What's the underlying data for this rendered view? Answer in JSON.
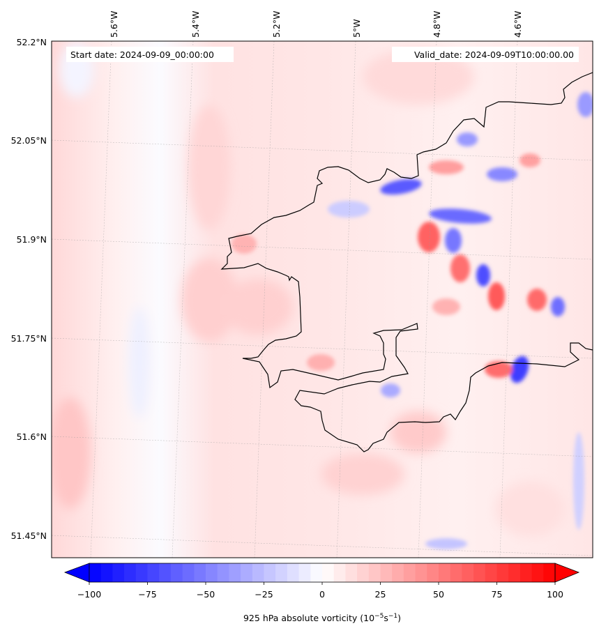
{
  "header": {
    "start_date": "Start date: 2024-09-09_00:00:00",
    "valid_date": "Valid_date: 2024-09-09T10:00:00.00"
  },
  "map": {
    "lon_ticks": [
      "5.6°W",
      "5.4°W",
      "5.2°W",
      "5°W",
      "4.8°W",
      "4.6°W"
    ],
    "lat_ticks": [
      "52.2°N",
      "52.05°N",
      "51.9°N",
      "51.75°N",
      "51.6°N",
      "51.45°N"
    ],
    "variable": "925 hPa absolute vorticity"
  },
  "colorbar": {
    "ticks": [
      "−100",
      "−75",
      "−50",
      "−25",
      "0",
      "25",
      "50",
      "75",
      "100"
    ],
    "label_main": "925 hPa absolute vorticity (10",
    "label_exp1": "−5",
    "label_mid": "s",
    "label_exp2": "−1",
    "label_end": ")",
    "range": [
      -100,
      100
    ],
    "colormap": "bwr",
    "low_color": "#0000ff",
    "mid_color": "#ffffff",
    "high_color": "#ff0000"
  }
}
